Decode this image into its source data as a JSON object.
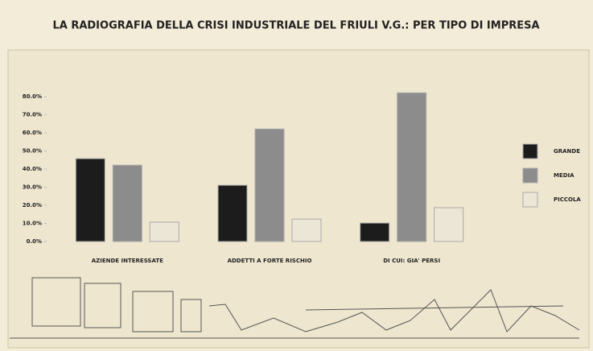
{
  "chart_data": {
    "type": "bar",
    "title": "LA RADIOGRAFIA DELLA CRISI INDUSTRIALE DEL FRIULI V.G.: PER TIPO DI IMPRESA",
    "categories": [
      "AZIENDE INTERESSATE",
      "ADDETTI A FORTE RISCHIO",
      "DI CUI: GIA' PERSI"
    ],
    "series": [
      {
        "name": "GRANDE",
        "color": "#1c1c1c",
        "values": [
          45.8,
          31.1,
          10.2
        ]
      },
      {
        "name": "MEDIA",
        "color": "#8c8c8c",
        "values": [
          42.2,
          62.2,
          82.2
        ]
      },
      {
        "name": "PICCOLA",
        "color": "#ece6d6",
        "values": [
          10.7,
          12.4,
          18.7
        ]
      }
    ],
    "ylim": [
      0,
      85
    ],
    "yticks": [
      {
        "value": 0,
        "label": "0.0%"
      },
      {
        "value": 10,
        "label": "10.0%"
      },
      {
        "value": 20,
        "label": "20.0%"
      },
      {
        "value": 30,
        "label": "30.0%"
      },
      {
        "value": 40,
        "label": "40.0%"
      },
      {
        "value": 50,
        "label": "50.0%"
      },
      {
        "value": 60,
        "label": "60.0%"
      },
      {
        "value": 70,
        "label": "70.0%"
      },
      {
        "value": 80,
        "label": "80.0%"
      }
    ],
    "grid": false,
    "legend": "right"
  }
}
